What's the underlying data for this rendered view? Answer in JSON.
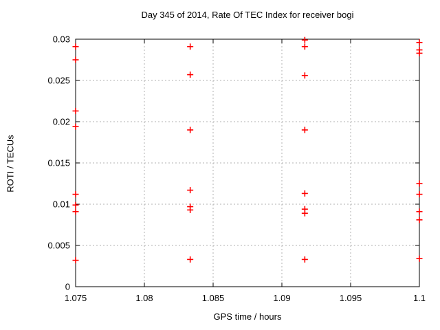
{
  "colors": {
    "marker": "#ff0000",
    "axis": "#000000",
    "grid": "#b0b0b0",
    "text": "#000000",
    "background": "#ffffff"
  },
  "chart_data": {
    "type": "scatter",
    "title": "Day 345 of 2014, Rate Of TEC Index for receiver bogi",
    "xlabel": "GPS time / hours",
    "ylabel": "ROTI / TECUs",
    "xlim": [
      1.075,
      1.1
    ],
    "ylim": [
      0,
      0.03
    ],
    "xticks": [
      1.075,
      1.08,
      1.085,
      1.09,
      1.095,
      1.1
    ],
    "xtick_labels": [
      "1.075",
      "1.08",
      "1.085",
      "1.09",
      "1.095",
      "1.1"
    ],
    "yticks": [
      0,
      0.005,
      0.01,
      0.015,
      0.02,
      0.025,
      0.03
    ],
    "ytick_labels": [
      "0",
      "0.005",
      "0.01",
      "0.015",
      "0.02",
      "0.025",
      "0.03"
    ],
    "grid": true,
    "legend": "none",
    "marker": "plus",
    "series": [
      {
        "name": "ROTI",
        "points": [
          [
            1.075,
            0.0291
          ],
          [
            1.075,
            0.0275
          ],
          [
            1.075,
            0.0213
          ],
          [
            1.075,
            0.0194
          ],
          [
            1.075,
            0.0112
          ],
          [
            1.075,
            0.0099
          ],
          [
            1.075,
            0.0091
          ],
          [
            1.075,
            0.0032
          ],
          [
            1.083333,
            0.0291
          ],
          [
            1.083333,
            0.0257
          ],
          [
            1.083333,
            0.019
          ],
          [
            1.083333,
            0.0117
          ],
          [
            1.083333,
            0.0097
          ],
          [
            1.083333,
            0.0093
          ],
          [
            1.083333,
            0.0033
          ],
          [
            1.091667,
            0.0299
          ],
          [
            1.091667,
            0.0291
          ],
          [
            1.091667,
            0.0256
          ],
          [
            1.091667,
            0.019
          ],
          [
            1.091667,
            0.0113
          ],
          [
            1.091667,
            0.0094
          ],
          [
            1.091667,
            0.0089
          ],
          [
            1.091667,
            0.0033
          ],
          [
            1.1,
            0.0296
          ],
          [
            1.1,
            0.0287
          ],
          [
            1.1,
            0.0283
          ],
          [
            1.1,
            0.0125
          ],
          [
            1.1,
            0.0112
          ],
          [
            1.1,
            0.0091
          ],
          [
            1.1,
            0.0081
          ],
          [
            1.1,
            0.0034
          ]
        ]
      }
    ]
  }
}
